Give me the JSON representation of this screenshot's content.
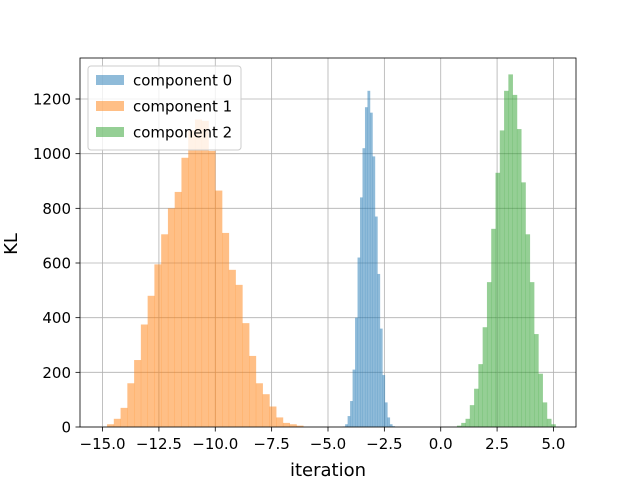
{
  "chart_data": {
    "type": "histogram",
    "title": "",
    "xlabel": "iteration",
    "ylabel": "KL",
    "xlim": [
      -16.0,
      6.0
    ],
    "ylim": [
      0,
      1350
    ],
    "xticks": [
      -15.0,
      -12.5,
      -10.0,
      -7.5,
      -5.0,
      -2.5,
      0.0,
      2.5,
      5.0
    ],
    "xtick_labels": [
      "−15.0",
      "−12.5",
      "−10.0",
      "−7.5",
      "−5.0",
      "−2.5",
      "0.0",
      "2.5",
      "5.0"
    ],
    "yticks": [
      0,
      200,
      400,
      600,
      800,
      1000,
      1200
    ],
    "ytick_labels": [
      "0",
      "200",
      "400",
      "600",
      "800",
      "1000",
      "1200"
    ],
    "grid": true,
    "legend_position": "top-left",
    "series": [
      {
        "name": "component 0",
        "color": "#1f77b4",
        "bin_start": -4.35,
        "bin_width": 0.11,
        "values": [
          2,
          10,
          40,
          95,
          210,
          400,
          620,
          840,
          1020,
          1170,
          1230,
          1150,
          990,
          770,
          560,
          360,
          190,
          90,
          35,
          10,
          3
        ]
      },
      {
        "name": "component 1",
        "color": "#ff7f0e",
        "bin_start": -14.8,
        "bin_width": 0.3,
        "values": [
          10,
          30,
          70,
          160,
          245,
          375,
          480,
          595,
          705,
          800,
          860,
          985,
          1085,
          1125,
          1120,
          1010,
          865,
          710,
          575,
          520,
          380,
          260,
          160,
          120,
          75,
          35,
          15,
          10,
          5
        ]
      },
      {
        "name": "component 2",
        "color": "#2ca02c",
        "bin_start": 0.72,
        "bin_width": 0.19,
        "values": [
          5,
          15,
          30,
          80,
          140,
          230,
          365,
          530,
          725,
          930,
          1085,
          1230,
          1290,
          1215,
          1090,
          895,
          705,
          530,
          340,
          195,
          90,
          30,
          10
        ]
      }
    ]
  }
}
